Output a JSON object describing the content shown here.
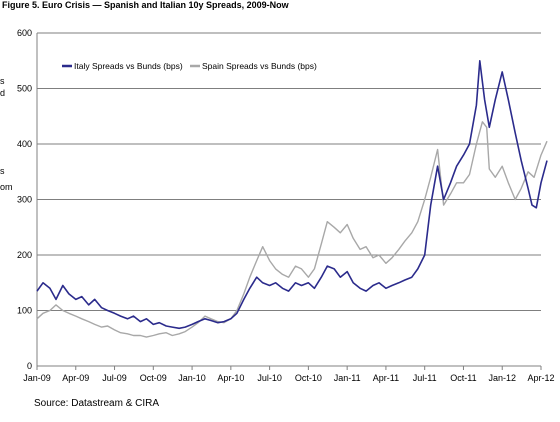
{
  "figure_title": "Figure 5. Euro Crisis — Spanish and Italian 10y Spreads, 2009-Now",
  "source": "Source: Datastream & CIRA",
  "side_fragments": [
    "s",
    "d",
    "s",
    "om"
  ],
  "colors": {
    "italy": "#2b2b8c",
    "spain": "#a8a8a8",
    "grid": "#000000",
    "axis": "#808080"
  },
  "chart_data": {
    "type": "line",
    "title": "Figure 5. Euro Crisis — Spanish and Italian 10y Spreads, 2009-Now",
    "ylim": [
      0,
      600
    ],
    "yticks": [
      0,
      100,
      200,
      300,
      400,
      500,
      600
    ],
    "ytick_labels": [
      "0",
      "100",
      "200",
      "300",
      "400",
      "500",
      "600"
    ],
    "xlim": [
      "2009-01",
      "2012-04"
    ],
    "xtick_labels": [
      "Jan-09",
      "Apr-09",
      "Jul-09",
      "Oct-09",
      "Jan-10",
      "Apr-10",
      "Jul-10",
      "Oct-10",
      "Jan-11",
      "Apr-11",
      "Jul-11",
      "Oct-11",
      "Jan-12",
      "Apr-12"
    ],
    "grid": "horizontal",
    "legend_position": "top-left",
    "series": [
      {
        "name": "Italy Spreads vs Bunds (bps)",
        "color": "#2b2b8c",
        "points": [
          [
            "2009-01",
            135
          ],
          [
            "2009-01-15",
            150
          ],
          [
            "2009-02",
            140
          ],
          [
            "2009-02-15",
            120
          ],
          [
            "2009-03",
            145
          ],
          [
            "2009-03-15",
            130
          ],
          [
            "2009-04",
            120
          ],
          [
            "2009-04-15",
            125
          ],
          [
            "2009-05",
            110
          ],
          [
            "2009-05-15",
            120
          ],
          [
            "2009-06",
            105
          ],
          [
            "2009-06-15",
            100
          ],
          [
            "2009-07",
            95
          ],
          [
            "2009-07-15",
            90
          ],
          [
            "2009-08",
            85
          ],
          [
            "2009-08-15",
            90
          ],
          [
            "2009-09",
            80
          ],
          [
            "2009-09-15",
            85
          ],
          [
            "2009-10",
            75
          ],
          [
            "2009-10-15",
            78
          ],
          [
            "2009-11",
            72
          ],
          [
            "2009-11-15",
            70
          ],
          [
            "2009-12",
            68
          ],
          [
            "2009-12-15",
            70
          ],
          [
            "2010-01",
            75
          ],
          [
            "2010-01-15",
            80
          ],
          [
            "2010-02",
            85
          ],
          [
            "2010-02-15",
            82
          ],
          [
            "2010-03",
            78
          ],
          [
            "2010-03-15",
            80
          ],
          [
            "2010-04",
            85
          ],
          [
            "2010-04-15",
            95
          ],
          [
            "2010-05",
            120
          ],
          [
            "2010-05-15",
            140
          ],
          [
            "2010-06",
            160
          ],
          [
            "2010-06-15",
            150
          ],
          [
            "2010-07",
            145
          ],
          [
            "2010-07-15",
            150
          ],
          [
            "2010-08",
            140
          ],
          [
            "2010-08-15",
            135
          ],
          [
            "2010-09",
            150
          ],
          [
            "2010-09-15",
            145
          ],
          [
            "2010-10",
            150
          ],
          [
            "2010-10-15",
            140
          ],
          [
            "2010-11",
            160
          ],
          [
            "2010-11-15",
            180
          ],
          [
            "2010-12",
            175
          ],
          [
            "2010-12-15",
            160
          ],
          [
            "2011-01",
            170
          ],
          [
            "2011-01-15",
            150
          ],
          [
            "2011-02",
            140
          ],
          [
            "2011-02-15",
            135
          ],
          [
            "2011-03",
            145
          ],
          [
            "2011-03-15",
            150
          ],
          [
            "2011-04",
            140
          ],
          [
            "2011-04-15",
            145
          ],
          [
            "2011-05",
            150
          ],
          [
            "2011-05-15",
            155
          ],
          [
            "2011-06",
            160
          ],
          [
            "2011-06-15",
            175
          ],
          [
            "2011-07",
            200
          ],
          [
            "2011-07-15",
            290
          ],
          [
            "2011-08",
            360
          ],
          [
            "2011-08-15",
            300
          ],
          [
            "2011-09",
            330
          ],
          [
            "2011-09-15",
            360
          ],
          [
            "2011-10",
            380
          ],
          [
            "2011-10-15",
            400
          ],
          [
            "2011-11",
            470
          ],
          [
            "2011-11-09",
            550
          ],
          [
            "2011-11-20",
            480
          ],
          [
            "2011-12",
            430
          ],
          [
            "2011-12-15",
            480
          ],
          [
            "2012-01",
            530
          ],
          [
            "2012-01-15",
            480
          ],
          [
            "2012-02",
            420
          ],
          [
            "2012-02-15",
            370
          ],
          [
            "2012-03",
            320
          ],
          [
            "2012-03-10",
            290
          ],
          [
            "2012-03-20",
            285
          ],
          [
            "2012-04",
            330
          ],
          [
            "2012-04-15",
            370
          ]
        ]
      },
      {
        "name": "Spain Spreads vs Bunds (bps)",
        "color": "#a8a8a8",
        "points": [
          [
            "2009-01",
            85
          ],
          [
            "2009-01-15",
            95
          ],
          [
            "2009-02",
            100
          ],
          [
            "2009-02-15",
            110
          ],
          [
            "2009-03",
            100
          ],
          [
            "2009-03-15",
            95
          ],
          [
            "2009-04",
            90
          ],
          [
            "2009-04-15",
            85
          ],
          [
            "2009-05",
            80
          ],
          [
            "2009-05-15",
            75
          ],
          [
            "2009-06",
            70
          ],
          [
            "2009-06-15",
            72
          ],
          [
            "2009-07",
            65
          ],
          [
            "2009-07-15",
            60
          ],
          [
            "2009-08",
            58
          ],
          [
            "2009-08-15",
            55
          ],
          [
            "2009-09",
            55
          ],
          [
            "2009-09-15",
            52
          ],
          [
            "2009-10",
            55
          ],
          [
            "2009-10-15",
            58
          ],
          [
            "2009-11",
            60
          ],
          [
            "2009-11-15",
            55
          ],
          [
            "2009-12",
            58
          ],
          [
            "2009-12-15",
            62
          ],
          [
            "2010-01",
            70
          ],
          [
            "2010-01-15",
            78
          ],
          [
            "2010-02",
            90
          ],
          [
            "2010-02-15",
            85
          ],
          [
            "2010-03",
            80
          ],
          [
            "2010-03-15",
            78
          ],
          [
            "2010-04",
            85
          ],
          [
            "2010-04-15",
            100
          ],
          [
            "2010-05",
            130
          ],
          [
            "2010-05-15",
            160
          ],
          [
            "2010-06",
            190
          ],
          [
            "2010-06-15",
            215
          ],
          [
            "2010-07",
            190
          ],
          [
            "2010-07-15",
            175
          ],
          [
            "2010-08",
            165
          ],
          [
            "2010-08-15",
            160
          ],
          [
            "2010-09",
            180
          ],
          [
            "2010-09-15",
            175
          ],
          [
            "2010-10",
            160
          ],
          [
            "2010-10-15",
            175
          ],
          [
            "2010-11",
            220
          ],
          [
            "2010-11-15",
            260
          ],
          [
            "2010-12",
            250
          ],
          [
            "2010-12-15",
            240
          ],
          [
            "2011-01",
            255
          ],
          [
            "2011-01-15",
            230
          ],
          [
            "2011-02",
            210
          ],
          [
            "2011-02-15",
            215
          ],
          [
            "2011-03",
            195
          ],
          [
            "2011-03-15",
            200
          ],
          [
            "2011-04",
            185
          ],
          [
            "2011-04-15",
            195
          ],
          [
            "2011-05",
            210
          ],
          [
            "2011-05-15",
            225
          ],
          [
            "2011-06",
            240
          ],
          [
            "2011-06-15",
            260
          ],
          [
            "2011-07",
            300
          ],
          [
            "2011-07-15",
            340
          ],
          [
            "2011-08",
            390
          ],
          [
            "2011-08-15",
            290
          ],
          [
            "2011-09",
            310
          ],
          [
            "2011-09-15",
            330
          ],
          [
            "2011-10",
            330
          ],
          [
            "2011-10-15",
            345
          ],
          [
            "2011-11",
            400
          ],
          [
            "2011-11-15",
            440
          ],
          [
            "2011-11-25",
            430
          ],
          [
            "2011-12",
            355
          ],
          [
            "2011-12-15",
            340
          ],
          [
            "2012-01",
            360
          ],
          [
            "2012-01-15",
            330
          ],
          [
            "2012-02",
            300
          ],
          [
            "2012-02-15",
            320
          ],
          [
            "2012-03",
            350
          ],
          [
            "2012-03-15",
            340
          ],
          [
            "2012-04",
            380
          ],
          [
            "2012-04-15",
            405
          ]
        ]
      }
    ]
  }
}
